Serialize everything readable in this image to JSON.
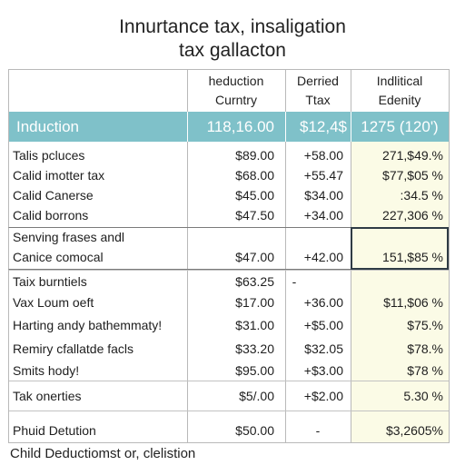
{
  "title": {
    "line1": "Innurtance tax, insaligation",
    "line2": "tax gallacton"
  },
  "header": {
    "col2": [
      "heduction",
      "Curntry"
    ],
    "col3": [
      "Derried",
      "Ttax"
    ],
    "col4": [
      "Indlitical",
      "Edenity"
    ]
  },
  "band": {
    "label": "Induction",
    "col2": "118,16.00",
    "col3": "$12,4$",
    "col4": "1275 (120')"
  },
  "rows": [
    {
      "label": "Talis pcluces",
      "col2": "$89.00",
      "col3": "+58.00",
      "col4": "271,$49.%"
    },
    {
      "label": "Calid imotter tax",
      "col2": "$68.00",
      "col3": "+55.47",
      "col4": "$77,$05 %"
    },
    {
      "label": "Calid Canerse",
      "col2": "$45.00",
      "col3": "$34.00",
      "col4": ":34.5 %"
    },
    {
      "label": "Calid borrons",
      "col2": "$47.50",
      "col3": "+34.00",
      "col4": "227,306 %"
    },
    {
      "label": "Senving frases andl",
      "col2": "",
      "col3": "",
      "col4": ""
    },
    {
      "label": "Canice comocal",
      "col2": "$47.00",
      "col3": "+42.00",
      "col4": "151,$85 %"
    },
    {
      "label": "Taix burntiels",
      "col2": "$63.25",
      "col3": "-",
      "col4": ""
    },
    {
      "label": "Vax Loum oeft",
      "col2": "$17.00",
      "col3": "+36.00",
      "col4": "$11,$06 %"
    },
    {
      "label": "Harting andy bathemmaty!",
      "col2": "$31.00",
      "col3": "+$5.00",
      "col4": "$75.%"
    },
    {
      "label": "Remiry cfallatde facls",
      "col2": "$33.20",
      "col3": "$32.05",
      "col4": "$78.%"
    },
    {
      "label": "Smits hody!",
      "col2": "$95.00",
      "col3": "+$3.00",
      "col4": "$78 %"
    },
    {
      "label": "Tak onerties",
      "col2": "$5/.00",
      "col3": "+$2.00",
      "col4": "5.30 %"
    },
    {
      "label": "Phuid Detution",
      "col2": "$50.00",
      "col3": "-",
      "col4": "$3,2605%"
    }
  ],
  "footer": "Child Deductiomst or, clelistion"
}
